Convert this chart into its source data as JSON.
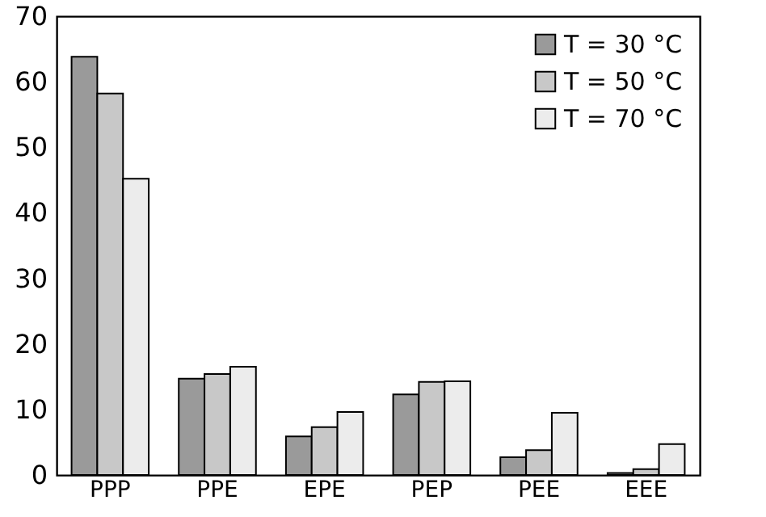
{
  "chart_data": {
    "type": "bar",
    "categories": [
      "PPP",
      "PPE",
      "EPE",
      "PEP",
      "PEE",
      "EEE"
    ],
    "series": [
      {
        "name": "T = 30 °C",
        "color": "#9a9a9a",
        "values": [
          63.8,
          14.7,
          5.9,
          12.3,
          2.7,
          0.3
        ]
      },
      {
        "name": "T = 50 °C",
        "color": "#c8c8c8",
        "values": [
          58.2,
          15.4,
          7.3,
          14.2,
          3.8,
          0.9
        ]
      },
      {
        "name": "T = 70 °C",
        "color": "#ececec",
        "values": [
          45.2,
          16.5,
          9.6,
          14.3,
          9.5,
          4.7
        ]
      }
    ],
    "ylim": [
      0,
      70
    ],
    "yticks": [
      0,
      10,
      20,
      30,
      40,
      50,
      60,
      70
    ],
    "grid": false,
    "legend": "top right"
  }
}
